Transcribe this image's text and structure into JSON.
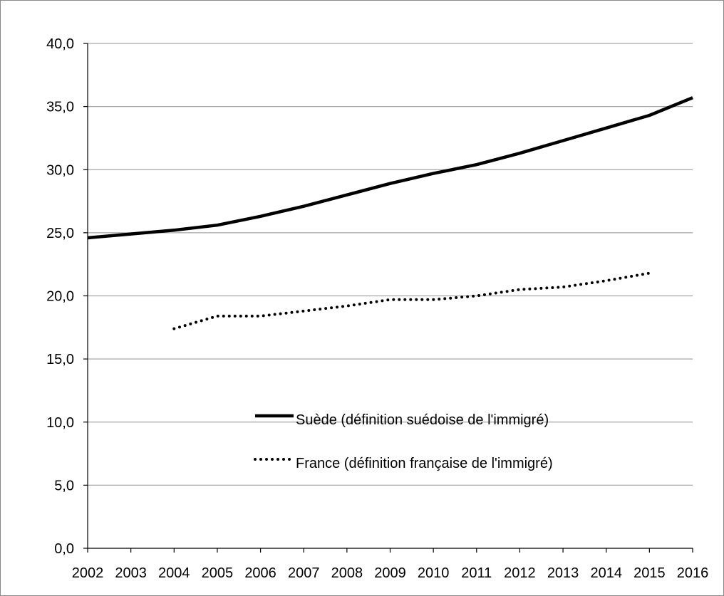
{
  "chart_data": {
    "type": "line",
    "title": "",
    "xlabel": "",
    "ylabel": "",
    "x": [
      2002,
      2003,
      2004,
      2005,
      2006,
      2007,
      2008,
      2009,
      2010,
      2011,
      2012,
      2013,
      2014,
      2015,
      2016
    ],
    "x_tick_labels": [
      "2002",
      "2003",
      "2004",
      "2005",
      "2006",
      "2007",
      "2008",
      "2009",
      "2010",
      "2011",
      "2012",
      "2013",
      "2014",
      "2015",
      "2016"
    ],
    "ylim": [
      0,
      40
    ],
    "y_ticks": [
      0,
      5,
      10,
      15,
      20,
      25,
      30,
      35,
      40
    ],
    "y_tick_labels": [
      "0,0",
      "5,0",
      "10,0",
      "15,0",
      "20,0",
      "25,0",
      "30,0",
      "35,0",
      "40,0"
    ],
    "grid": true,
    "legend_position": "center",
    "series": [
      {
        "name": "Suède (définition suédoise de l'immigré)",
        "style": "solid",
        "color": "#000000",
        "x": [
          2002,
          2003,
          2004,
          2005,
          2006,
          2007,
          2008,
          2009,
          2010,
          2011,
          2012,
          2013,
          2014,
          2015,
          2016
        ],
        "values": [
          24.6,
          24.9,
          25.2,
          25.6,
          26.3,
          27.1,
          28.0,
          28.9,
          29.7,
          30.4,
          31.3,
          32.3,
          33.3,
          34.3,
          35.7
        ]
      },
      {
        "name": "France (définition française de l'immigré)",
        "style": "dotted",
        "color": "#000000",
        "x": [
          2004,
          2005,
          2006,
          2007,
          2008,
          2009,
          2010,
          2011,
          2012,
          2013,
          2014,
          2015
        ],
        "values": [
          17.4,
          18.4,
          18.4,
          18.8,
          19.2,
          19.7,
          19.7,
          20.0,
          20.5,
          20.7,
          21.2,
          21.8
        ]
      }
    ]
  }
}
